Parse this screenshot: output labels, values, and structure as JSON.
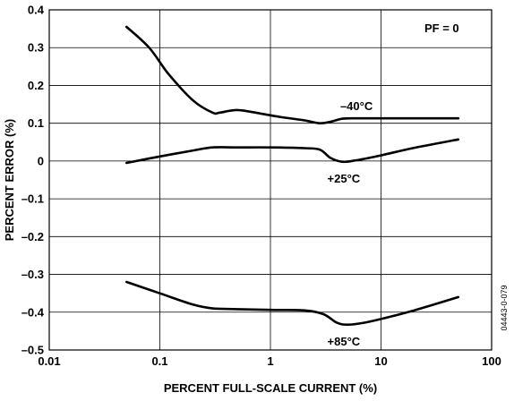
{
  "chart_data": {
    "type": "line",
    "xlabel": "PERCENT FULL-SCALE CURRENT (%)",
    "ylabel": "PERCENT ERROR (%)",
    "xscale": "log",
    "xlim": [
      0.01,
      100
    ],
    "ylim": [
      -0.5,
      0.4
    ],
    "grid": true,
    "x_ticks": [
      {
        "value": 0.01,
        "label": "0.01"
      },
      {
        "value": 0.1,
        "label": "0.1"
      },
      {
        "value": 1,
        "label": "1"
      },
      {
        "value": 10,
        "label": "10"
      },
      {
        "value": 100,
        "label": "100"
      }
    ],
    "y_ticks": [
      {
        "value": 0.4,
        "label": "0.4"
      },
      {
        "value": 0.3,
        "label": "0.3"
      },
      {
        "value": 0.2,
        "label": "0.2"
      },
      {
        "value": 0.1,
        "label": "0.1"
      },
      {
        "value": 0,
        "label": "0"
      },
      {
        "value": -0.1,
        "label": "–0.1"
      },
      {
        "value": -0.2,
        "label": "–0.2"
      },
      {
        "value": -0.3,
        "label": "–0.3"
      },
      {
        "value": -0.4,
        "label": "–0.4"
      },
      {
        "value": -0.5,
        "label": "–0.5"
      }
    ],
    "annotations": {
      "pf": "PF = 0",
      "figure_id": "04443-0-079"
    },
    "series": [
      {
        "name": "–40°C",
        "x": [
          0.05,
          0.08,
          0.12,
          0.2,
          0.3,
          0.35,
          0.5,
          0.8,
          1.2,
          2,
          2.8,
          3.5,
          4.5,
          6,
          10,
          20,
          50
        ],
        "y": [
          0.355,
          0.3,
          0.23,
          0.16,
          0.128,
          0.128,
          0.135,
          0.126,
          0.117,
          0.108,
          0.1,
          0.104,
          0.112,
          0.113,
          0.113,
          0.113,
          0.113
        ]
      },
      {
        "name": "+25°C",
        "x": [
          0.05,
          0.1,
          0.2,
          0.3,
          0.5,
          1,
          2,
          2.8,
          3.5,
          4.5,
          6,
          10,
          20,
          50
        ],
        "y": [
          -0.005,
          0.012,
          0.028,
          0.036,
          0.036,
          0.036,
          0.034,
          0.03,
          0.008,
          -0.002,
          0.002,
          0.015,
          0.035,
          0.057
        ]
      },
      {
        "name": "+85°C",
        "x": [
          0.05,
          0.1,
          0.2,
          0.3,
          0.5,
          1,
          2,
          3,
          4,
          5,
          7,
          10,
          20,
          50
        ],
        "y": [
          -0.32,
          -0.35,
          -0.38,
          -0.39,
          -0.392,
          -0.394,
          -0.395,
          -0.405,
          -0.428,
          -0.433,
          -0.428,
          -0.418,
          -0.395,
          -0.36
        ]
      }
    ]
  }
}
